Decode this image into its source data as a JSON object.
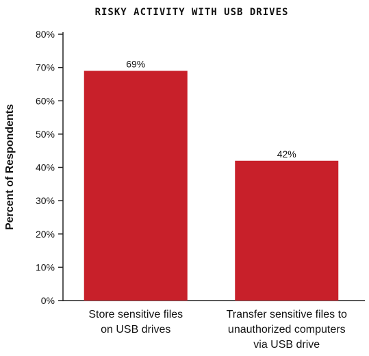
{
  "chart_data": {
    "type": "bar",
    "title": "RISKY ACTIVITY WITH USB DRIVES",
    "ylabel": "Percent of Respondents",
    "xlabel": "",
    "categories": [
      [
        "Store sensitive files",
        "on USB drives"
      ],
      [
        "Transfer sensitive files to",
        "unauthorized computers",
        "via USB drive"
      ]
    ],
    "values": [
      69,
      42
    ],
    "value_labels": [
      "69%",
      "42%"
    ],
    "ylim": [
      0,
      80
    ],
    "yticks": [
      {
        "value": 0,
        "label": "0%"
      },
      {
        "value": 10,
        "label": "10%"
      },
      {
        "value": 20,
        "label": "20%"
      },
      {
        "value": 30,
        "label": "30%"
      },
      {
        "value": 40,
        "label": "40%"
      },
      {
        "value": 50,
        "label": "50%"
      },
      {
        "value": 60,
        "label": "60%"
      },
      {
        "value": 70,
        "label": "70%"
      },
      {
        "value": 80,
        "label": "80%"
      }
    ],
    "grid": false,
    "legend": "none",
    "bar_color": "#c8202a"
  }
}
